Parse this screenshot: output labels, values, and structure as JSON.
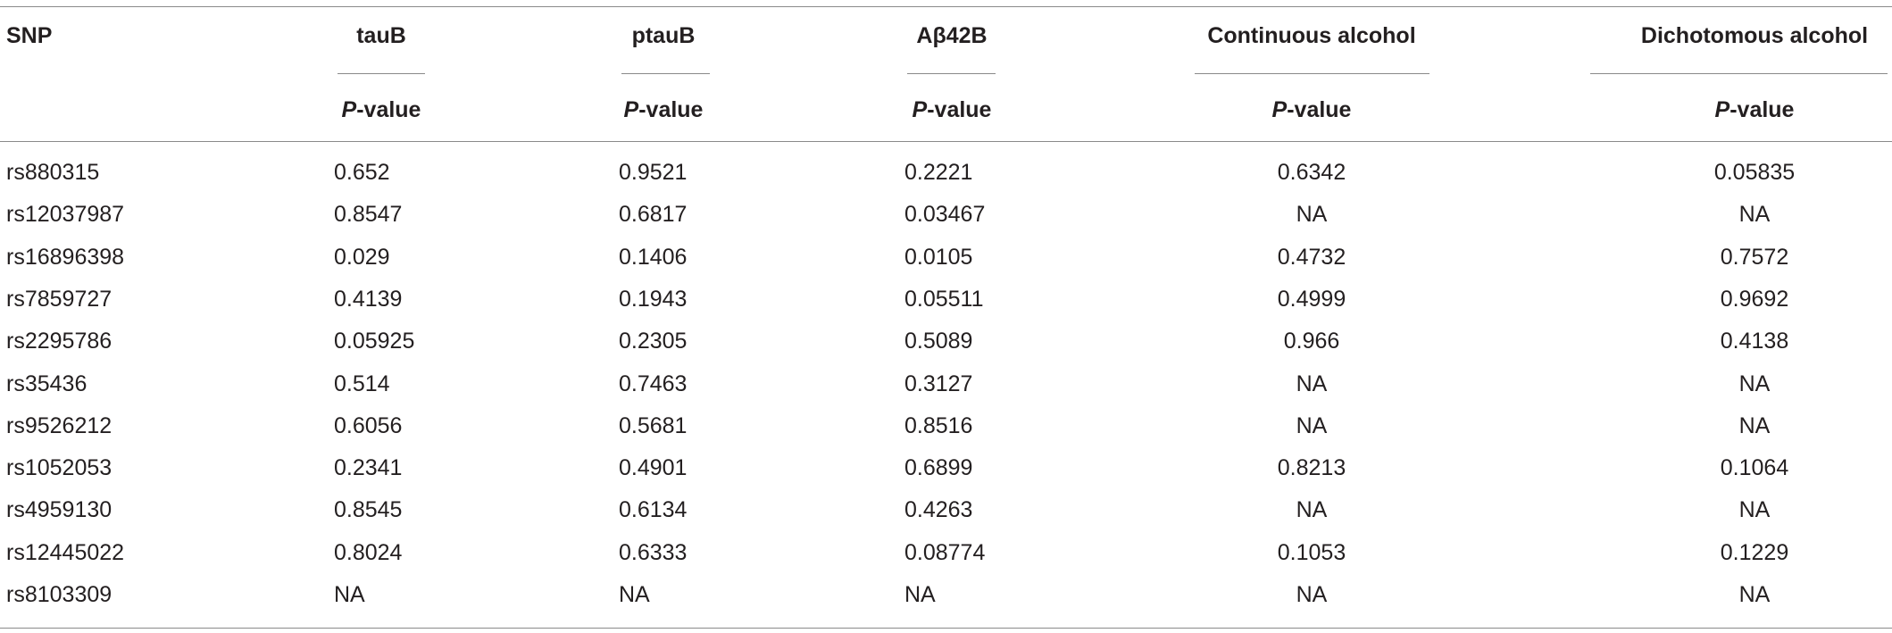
{
  "table": {
    "columns": [
      "SNP",
      "tauB",
      "ptauB",
      "Aβ42B",
      "Continuous alcohol",
      "Dichotomous alcohol"
    ],
    "subheader": {
      "italic": "P",
      "rest": "-value"
    },
    "rows": [
      [
        "rs880315",
        "0.652",
        "0.9521",
        "0.2221",
        "0.6342",
        "0.05835"
      ],
      [
        "rs12037987",
        "0.8547",
        "0.6817",
        "0.03467",
        "NA",
        "NA"
      ],
      [
        "rs16896398",
        "0.029",
        "0.1406",
        "0.0105",
        "0.4732",
        "0.7572"
      ],
      [
        "rs7859727",
        "0.4139",
        "0.1943",
        "0.05511",
        "0.4999",
        "0.9692"
      ],
      [
        "rs2295786",
        "0.05925",
        "0.2305",
        "0.5089",
        "0.966",
        "0.4138"
      ],
      [
        "rs35436",
        "0.514",
        "0.7463",
        "0.3127",
        "NA",
        "NA"
      ],
      [
        "rs9526212",
        "0.6056",
        "0.5681",
        "0.8516",
        "NA",
        "NA"
      ],
      [
        "rs1052053",
        "0.2341",
        "0.4901",
        "0.6899",
        "0.8213",
        "0.1064"
      ],
      [
        "rs4959130",
        "0.8545",
        "0.6134",
        "0.4263",
        "NA",
        "NA"
      ],
      [
        "rs12445022",
        "0.8024",
        "0.6333",
        "0.08774",
        "0.1053",
        "0.1229"
      ],
      [
        "rs8103309",
        "NA",
        "NA",
        "NA",
        "NA",
        "NA"
      ]
    ]
  }
}
